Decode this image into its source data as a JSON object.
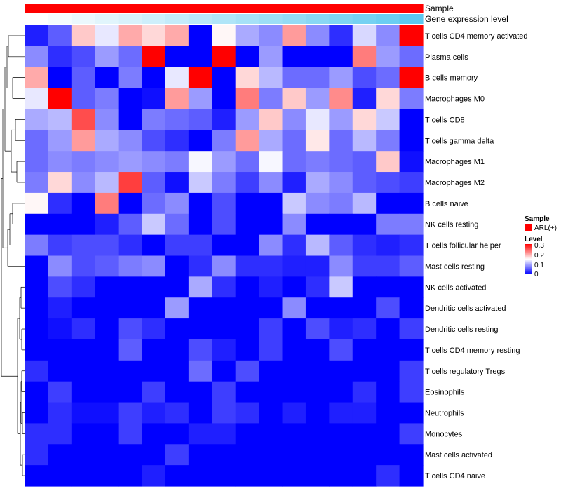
{
  "chart_data": {
    "type": "heatmap",
    "rows": [
      "T cells CD4 memory activated",
      "Plasma cells",
      "B cells memory",
      "Macrophages M0",
      "T cells CD8",
      "T cells gamma delta",
      "Macrophages M1",
      "Macrophages M2",
      "B cells naive",
      "NK cells resting",
      "T cells follicular helper",
      "Mast cells resting",
      "NK cells activated",
      "Dendritic cells activated",
      "Dendritic cells resting",
      "T cells CD4 memory resting",
      "T cells regulatory  Tregs",
      "Eosinophils",
      "Neutrophils",
      "Monocytes",
      "Mast cells activated",
      "T cells CD4 naive"
    ],
    "n_samples": 17,
    "values": [
      [
        0.02,
        0.06,
        0.2,
        0.15,
        0.22,
        0.19,
        0.22,
        0.0,
        0.17,
        0.11,
        0.09,
        0.23,
        0.09,
        0.03,
        0.14,
        0.09,
        0.33
      ],
      [
        0.09,
        0.03,
        0.05,
        0.1,
        0.07,
        0.33,
        0.0,
        0.0,
        0.33,
        0.0,
        0.1,
        0.0,
        0.0,
        0.0,
        0.25,
        0.1,
        0.07
      ],
      [
        0.22,
        0.0,
        0.06,
        0.0,
        0.08,
        0.0,
        0.15,
        0.33,
        0.0,
        0.19,
        0.12,
        0.07,
        0.07,
        0.1,
        0.05,
        0.07,
        0.33
      ],
      [
        0.15,
        0.33,
        0.06,
        0.08,
        0.0,
        0.01,
        0.23,
        0.1,
        0.0,
        0.25,
        0.08,
        0.2,
        0.1,
        0.24,
        0.02,
        0.19,
        0.08
      ],
      [
        0.11,
        0.12,
        0.28,
        0.09,
        0.0,
        0.08,
        0.07,
        0.06,
        0.02,
        0.1,
        0.2,
        0.09,
        0.15,
        0.1,
        0.19,
        0.13,
        0.0
      ],
      [
        0.07,
        0.1,
        0.23,
        0.11,
        0.09,
        0.05,
        0.03,
        0.0,
        0.08,
        0.23,
        0.11,
        0.07,
        0.18,
        0.07,
        0.12,
        0.08,
        0.0
      ],
      [
        0.07,
        0.09,
        0.08,
        0.09,
        0.1,
        0.09,
        0.08,
        0.16,
        0.1,
        0.07,
        0.16,
        0.07,
        0.08,
        0.07,
        0.06,
        0.2,
        0.01
      ],
      [
        0.08,
        0.19,
        0.09,
        0.12,
        0.29,
        0.06,
        0.01,
        0.13,
        0.08,
        0.04,
        0.09,
        0.02,
        0.11,
        0.09,
        0.06,
        0.05,
        0.04
      ],
      [
        0.17,
        0.03,
        0.0,
        0.25,
        0.0,
        0.07,
        0.09,
        0.0,
        0.05,
        0.0,
        0.0,
        0.13,
        0.09,
        0.08,
        0.12,
        0.0,
        0.0
      ],
      [
        0.0,
        0.0,
        0.0,
        0.02,
        0.06,
        0.13,
        0.07,
        0.0,
        0.05,
        0.0,
        0.0,
        0.09,
        0.0,
        0.0,
        0.0,
        0.08,
        0.08
      ],
      [
        0.08,
        0.04,
        0.05,
        0.05,
        0.03,
        0.0,
        0.04,
        0.04,
        0.0,
        0.0,
        0.09,
        0.03,
        0.12,
        0.06,
        0.03,
        0.02,
        0.03
      ],
      [
        0.0,
        0.09,
        0.05,
        0.06,
        0.08,
        0.09,
        0.0,
        0.03,
        0.09,
        0.03,
        0.03,
        0.02,
        0.02,
        0.09,
        0.04,
        0.04,
        0.06
      ],
      [
        0.0,
        0.05,
        0.03,
        0.0,
        0.0,
        0.0,
        0.0,
        0.11,
        0.03,
        0.0,
        0.02,
        0.0,
        0.03,
        0.13,
        0.0,
        0.0,
        0.0
      ],
      [
        0.0,
        0.02,
        0.0,
        0.0,
        0.0,
        0.0,
        0.1,
        0.0,
        0.0,
        0.0,
        0.0,
        0.09,
        0.0,
        0.0,
        0.0,
        0.05,
        0.0
      ],
      [
        0.0,
        0.01,
        0.03,
        0.0,
        0.05,
        0.03,
        0.0,
        0.0,
        0.0,
        0.0,
        0.04,
        0.0,
        0.05,
        0.02,
        0.03,
        0.0,
        0.04
      ],
      [
        0.0,
        0.0,
        0.0,
        0.0,
        0.06,
        0.0,
        0.0,
        0.05,
        0.02,
        0.0,
        0.04,
        0.0,
        0.0,
        0.05,
        0.0,
        0.0,
        0.0
      ],
      [
        0.03,
        0.0,
        0.0,
        0.0,
        0.0,
        0.0,
        0.0,
        0.07,
        0.0,
        0.05,
        0.0,
        0.0,
        0.0,
        0.0,
        0.0,
        0.0,
        0.04
      ],
      [
        0.0,
        0.04,
        0.0,
        0.0,
        0.0,
        0.04,
        0.0,
        0.0,
        0.04,
        0.0,
        0.0,
        0.0,
        0.0,
        0.0,
        0.03,
        0.0,
        0.04
      ],
      [
        0.0,
        0.03,
        0.01,
        0.01,
        0.04,
        0.02,
        0.03,
        0.0,
        0.04,
        0.03,
        0.0,
        0.02,
        0.0,
        0.02,
        0.02,
        0.0,
        0.0
      ],
      [
        0.03,
        0.03,
        0.0,
        0.0,
        0.04,
        0.0,
        0.0,
        0.02,
        0.02,
        0.0,
        0.0,
        0.0,
        0.0,
        0.0,
        0.0,
        0.0,
        0.04
      ],
      [
        0.03,
        0.0,
        0.0,
        0.0,
        0.0,
        0.0,
        0.04,
        0.0,
        0.0,
        0.0,
        0.0,
        0.0,
        0.0,
        0.0,
        0.0,
        0.0,
        0.0
      ],
      [
        0.0,
        0.0,
        0.0,
        0.0,
        0.0,
        0.02,
        0.0,
        0.0,
        0.0,
        0.0,
        0.0,
        0.0,
        0.0,
        0.0,
        0.0,
        0.03,
        0.0
      ]
    ],
    "annotations": [
      {
        "name": "Sample",
        "values": [
          "ARL(+)",
          "ARL(+)",
          "ARL(+)",
          "ARL(+)",
          "ARL(+)",
          "ARL(+)",
          "ARL(+)",
          "ARL(+)",
          "ARL(+)",
          "ARL(+)",
          "ARL(+)",
          "ARL(+)",
          "ARL(+)",
          "ARL(+)",
          "ARL(+)",
          "ARL(+)",
          "ARL(+)"
        ]
      },
      {
        "name": "Gene expression level",
        "values": [
          0.0,
          0.03,
          0.06,
          0.09,
          0.12,
          0.15,
          0.18,
          0.21,
          0.24,
          0.27,
          0.3,
          0.33,
          0.36,
          0.39,
          0.42,
          0.45,
          0.5
        ]
      }
    ],
    "legend": {
      "sample_title": "Sample",
      "sample_entry": "ARL(+)",
      "level_title": "Level",
      "level_ticks": [
        "0.3",
        "0.2",
        "0.1",
        "0"
      ],
      "range": [
        0,
        0.33
      ]
    },
    "row_dendrogram": true
  },
  "colors": {
    "low": "#0000ff",
    "mid": "#ffffff",
    "high": "#ff0000",
    "sample": "#ff0000",
    "expr_low": "#ffffff",
    "expr_high": "#5bc8f0"
  }
}
